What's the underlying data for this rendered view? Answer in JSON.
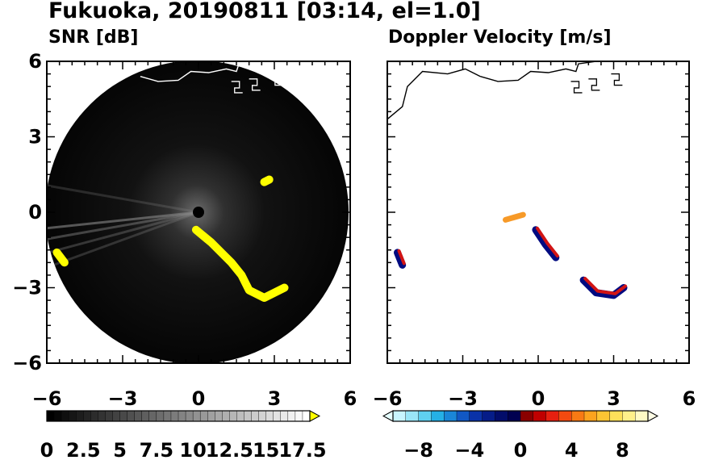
{
  "figure": {
    "title": "Fukuoka, 20190811 [03:14, el=1.0]"
  },
  "panels": {
    "left": {
      "subtitle": "SNR [dB]"
    },
    "right": {
      "subtitle": "Doppler Velocity [m/s]"
    }
  },
  "chart_data": [
    {
      "type": "heatmap",
      "title": "SNR [dB]",
      "xlim": [
        -6,
        6
      ],
      "ylim": [
        -6,
        6
      ],
      "xticks": [
        -6,
        -3,
        0,
        3,
        6
      ],
      "yticks": [
        6,
        3,
        0,
        -3,
        -6
      ],
      "xtick_labels": [
        "−6",
        "−3",
        "0",
        "3",
        "6"
      ],
      "ytick_labels": [
        "6",
        "3",
        "0",
        "−3",
        "−6"
      ],
      "radar_range": 6,
      "colorbar": {
        "colormap": "gray-to-yellow",
        "ticks": [
          "0",
          "2.5",
          "5",
          "7.5",
          "10",
          "12.5",
          "15",
          "17.5"
        ],
        "range": [
          0,
          18
        ],
        "extend": "max",
        "colors": {
          "low": "#000000",
          "high": "#ffffff",
          "over": "#ffff00"
        }
      },
      "features": [
        {
          "label": "strong echo band",
          "color": "#ffff00",
          "points": [
            [
              -0.1,
              -0.7
            ],
            [
              0.5,
              -1.2
            ],
            [
              0.9,
              -1.6
            ],
            [
              1.3,
              -2.0
            ],
            [
              1.7,
              -2.5
            ],
            [
              2.0,
              -3.1
            ],
            [
              2.6,
              -3.4
            ],
            [
              3.4,
              -3.0
            ]
          ]
        },
        {
          "label": "strong echo",
          "color": "#ffff00",
          "points": [
            [
              -5.6,
              -1.6
            ],
            [
              -5.3,
              -2.0
            ]
          ]
        },
        {
          "label": "strong echo",
          "color": "#ffff00",
          "points": [
            [
              2.6,
              1.2
            ],
            [
              2.8,
              1.3
            ]
          ]
        }
      ]
    },
    {
      "type": "heatmap",
      "title": "Doppler Velocity [m/s]",
      "xlim": [
        -6,
        6
      ],
      "ylim": [
        -6,
        6
      ],
      "xticks": [
        -6,
        -3,
        0,
        3,
        6
      ],
      "yticks": [
        6,
        3,
        0,
        -3,
        -6
      ],
      "xtick_labels": [
        "−6",
        "−3",
        "0",
        "3",
        "6"
      ],
      "colorbar": {
        "colormap": "blue-red diverging",
        "ticks": [
          "−8",
          "−4",
          "0",
          "4",
          "8"
        ],
        "range": [
          -10,
          10
        ],
        "extend": "both",
        "negative_colors": [
          "#c8f5ff",
          "#9ae6f8",
          "#5fd0f0",
          "#25b0e6",
          "#1a86d8",
          "#1158c4",
          "#0a32a8",
          "#051c88",
          "#020c6a",
          "#000050"
        ],
        "positive_colors": [
          "#8a0000",
          "#c00000",
          "#e62010",
          "#f24a10",
          "#f87a14",
          "#fca31e",
          "#fdc433",
          "#fee05a",
          "#fff08a",
          "#fffac4"
        ]
      },
      "features": [
        {
          "label": "approaching / receding pair",
          "colors": [
            "#000a80",
            "#d21414"
          ],
          "points": [
            [
              -0.1,
              -0.7
            ],
            [
              0.3,
              -1.3
            ],
            [
              0.7,
              -1.8
            ]
          ]
        },
        {
          "label": "approaching / receding pair",
          "colors": [
            "#000a80",
            "#d21414"
          ],
          "points": [
            [
              1.8,
              -2.7
            ],
            [
              2.3,
              -3.2
            ],
            [
              3.0,
              -3.3
            ],
            [
              3.4,
              -3.0
            ]
          ]
        },
        {
          "label": "approaching / receding pair",
          "colors": [
            "#000a80",
            "#d21414"
          ],
          "points": [
            [
              -5.6,
              -1.6
            ],
            [
              -5.4,
              -2.1
            ]
          ]
        },
        {
          "label": "weak positive",
          "color": "#f79a28",
          "points": [
            [
              -1.3,
              -0.3
            ],
            [
              -0.6,
              -0.1
            ]
          ]
        }
      ]
    }
  ]
}
